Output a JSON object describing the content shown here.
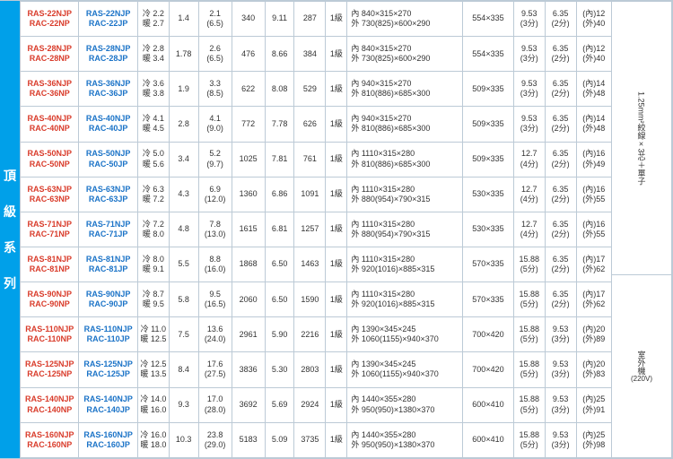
{
  "sidebar": {
    "chars": [
      "頂",
      "級",
      "系",
      "列"
    ]
  },
  "right_panel": {
    "cable_spec": "1.25mm²絞線×3芯＋單子",
    "outdoor": "室外機",
    "voltage": "(220V)"
  },
  "colors": {
    "red": "#d93c2b",
    "blue": "#1b73c7",
    "border": "#bccad6",
    "sidebar": "#00a0e9"
  },
  "rows": [
    {
      "m1a": "RAS-22NJP",
      "m1b": "RAC-22NP",
      "m2a": "RAS-22NJP",
      "m2b": "RAC-22JP",
      "cool": "2.2",
      "heat": "2.7",
      "eer": "1.4",
      "cop": "2.1",
      "copb": "(6.5)",
      "noise": "340",
      "cspf": "9.11",
      "aph": "287",
      "grade": "1級",
      "din": "840×315×270",
      "dout": "730(825)×600×290",
      "odim": "554×335",
      "pa": "9.53",
      "pab": "(3分)",
      "pb": "6.35",
      "pbb": "(2分)",
      "la": "(內)12",
      "lb": "(外)40"
    },
    {
      "m1a": "RAS-28NJP",
      "m1b": "RAC-28NP",
      "m2a": "RAS-28NJP",
      "m2b": "RAC-28JP",
      "cool": "2.8",
      "heat": "3.4",
      "eer": "1.78",
      "cop": "2.6",
      "copb": "(6.5)",
      "noise": "476",
      "cspf": "8.66",
      "aph": "384",
      "grade": "1級",
      "din": "840×315×270",
      "dout": "730(825)×600×290",
      "odim": "554×335",
      "pa": "9.53",
      "pab": "(3分)",
      "pb": "6.35",
      "pbb": "(2分)",
      "la": "(內)12",
      "lb": "(外)40"
    },
    {
      "m1a": "RAS-36NJP",
      "m1b": "RAC-36NP",
      "m2a": "RAS-36NJP",
      "m2b": "RAC-36JP",
      "cool": "3.6",
      "heat": "3.8",
      "eer": "1.9",
      "cop": "3.3",
      "copb": "(8.5)",
      "noise": "622",
      "cspf": "8.08",
      "aph": "529",
      "grade": "1級",
      "din": "940×315×270",
      "dout": "810(886)×685×300",
      "odim": "509×335",
      "pa": "9.53",
      "pab": "(3分)",
      "pb": "6.35",
      "pbb": "(2分)",
      "la": "(內)14",
      "lb": "(外)48"
    },
    {
      "m1a": "RAS-40NJP",
      "m1b": "RAC-40NP",
      "m2a": "RAS-40NJP",
      "m2b": "RAC-40JP",
      "cool": "4.1",
      "heat": "4.5",
      "eer": "2.8",
      "cop": "4.1",
      "copb": "(9.0)",
      "noise": "772",
      "cspf": "7.78",
      "aph": "626",
      "grade": "1級",
      "din": "940×315×270",
      "dout": "810(886)×685×300",
      "odim": "509×335",
      "pa": "9.53",
      "pab": "(3分)",
      "pb": "6.35",
      "pbb": "(2分)",
      "la": "(內)14",
      "lb": "(外)48"
    },
    {
      "m1a": "RAS-50NJP",
      "m1b": "RAC-50NP",
      "m2a": "RAS-50NJP",
      "m2b": "RAC-50JP",
      "cool": "5.0",
      "heat": "5.6",
      "eer": "3.4",
      "cop": "5.2",
      "copb": "(9.7)",
      "noise": "1025",
      "cspf": "7.81",
      "aph": "761",
      "grade": "1級",
      "din": "1110×315×280",
      "dout": "810(886)×685×300",
      "odim": "509×335",
      "pa": "12.7",
      "pab": "(4分)",
      "pb": "6.35",
      "pbb": "(2分)",
      "la": "(內)16",
      "lb": "(外)49"
    },
    {
      "m1a": "RAS-63NJP",
      "m1b": "RAC-63NP",
      "m2a": "RAS-63NJP",
      "m2b": "RAC-63JP",
      "cool": "6.3",
      "heat": "7.2",
      "eer": "4.3",
      "cop": "6.9",
      "copb": "(12.0)",
      "noise": "1360",
      "cspf": "6.86",
      "aph": "1091",
      "grade": "1級",
      "din": "1110×315×280",
      "dout": "880(954)×790×315",
      "odim": "530×335",
      "pa": "12.7",
      "pab": "(4分)",
      "pb": "6.35",
      "pbb": "(2分)",
      "la": "(內)16",
      "lb": "(外)55"
    },
    {
      "m1a": "RAS-71NJP",
      "m1b": "RAC-71NP",
      "m2a": "RAS-71NJP",
      "m2b": "RAC-71JP",
      "cool": "7.2",
      "heat": "8.0",
      "eer": "4.8",
      "cop": "7.8",
      "copb": "(13.0)",
      "noise": "1615",
      "cspf": "6.81",
      "aph": "1257",
      "grade": "1級",
      "din": "1110×315×280",
      "dout": "880(954)×790×315",
      "odim": "530×335",
      "pa": "12.7",
      "pab": "(4分)",
      "pb": "6.35",
      "pbb": "(2分)",
      "la": "(內)16",
      "lb": "(外)55"
    },
    {
      "m1a": "RAS-81NJP",
      "m1b": "RAC-81NP",
      "m2a": "RAS-81NJP",
      "m2b": "RAC-81JP",
      "cool": "8.0",
      "heat": "9.1",
      "eer": "5.5",
      "cop": "8.8",
      "copb": "(16.0)",
      "noise": "1868",
      "cspf": "6.50",
      "aph": "1463",
      "grade": "1級",
      "din": "1110×315×280",
      "dout": "920(1016)×885×315",
      "odim": "570×335",
      "pa": "15.88",
      "pab": "(5分)",
      "pb": "6.35",
      "pbb": "(2分)",
      "la": "(內)17",
      "lb": "(外)62"
    },
    {
      "m1a": "RAS-90NJP",
      "m1b": "RAC-90NP",
      "m2a": "RAS-90NJP",
      "m2b": "RAC-90JP",
      "cool": "8.7",
      "heat": "9.5",
      "eer": "5.8",
      "cop": "9.5",
      "copb": "(16.5)",
      "noise": "2060",
      "cspf": "6.50",
      "aph": "1590",
      "grade": "1級",
      "din": "1110×315×280",
      "dout": "920(1016)×885×315",
      "odim": "570×335",
      "pa": "15.88",
      "pab": "(5分)",
      "pb": "6.35",
      "pbb": "(2分)",
      "la": "(內)17",
      "lb": "(外)62"
    },
    {
      "m1a": "RAS-110NJP",
      "m1b": "RAC-110NP",
      "m2a": "RAS-110NJP",
      "m2b": "RAC-110JP",
      "cool": "11.0",
      "heat": "12.5",
      "eer": "7.5",
      "cop": "13.6",
      "copb": "(24.0)",
      "noise": "2961",
      "cspf": "5.90",
      "aph": "2216",
      "grade": "1級",
      "din": "1390×345×245",
      "dout": "1060(1155)×940×370",
      "odim": "700×420",
      "pa": "15.88",
      "pab": "(5分)",
      "pb": "9.53",
      "pbb": "(3分)",
      "la": "(內)20",
      "lb": "(外)89"
    },
    {
      "m1a": "RAS-125NJP",
      "m1b": "RAC-125NP",
      "m2a": "RAS-125NJP",
      "m2b": "RAC-125JP",
      "cool": "12.5",
      "heat": "13.5",
      "eer": "8.4",
      "cop": "17.6",
      "copb": "(27.5)",
      "noise": "3836",
      "cspf": "5.30",
      "aph": "2803",
      "grade": "1級",
      "din": "1390×345×245",
      "dout": "1060(1155)×940×370",
      "odim": "700×420",
      "pa": "15.88",
      "pab": "(5分)",
      "pb": "9.53",
      "pbb": "(3分)",
      "la": "(內)20",
      "lb": "(外)83"
    },
    {
      "m1a": "RAS-140NJP",
      "m1b": "RAC-140NP",
      "m2a": "RAS-140NJP",
      "m2b": "RAC-140JP",
      "cool": "14.0",
      "heat": "16.0",
      "eer": "9.3",
      "cop": "17.0",
      "copb": "(28.0)",
      "noise": "3692",
      "cspf": "5.69",
      "aph": "2924",
      "grade": "1級",
      "din": "1440×355×280",
      "dout": "950(950)×1380×370",
      "odim": "600×410",
      "pa": "15.88",
      "pab": "(5分)",
      "pb": "9.53",
      "pbb": "(3分)",
      "la": "(內)25",
      "lb": "(外)91"
    },
    {
      "m1a": "RAS-160NJP",
      "m1b": "RAC-160NP",
      "m2a": "RAS-160NJP",
      "m2b": "RAC-160JP",
      "cool": "16.0",
      "heat": "18.0",
      "eer": "10.3",
      "cop": "23.8",
      "copb": "(29.0)",
      "noise": "5183",
      "cspf": "5.09",
      "aph": "3735",
      "grade": "1級",
      "din": "1440×355×280",
      "dout": "950(950)×1380×370",
      "odim": "600×410",
      "pa": "15.88",
      "pab": "(5分)",
      "pb": "9.53",
      "pbb": "(3分)",
      "la": "(內)25",
      "lb": "(外)98"
    }
  ],
  "labels": {
    "cool": "冷",
    "heat": "暖",
    "in": "內",
    "out": "外"
  }
}
